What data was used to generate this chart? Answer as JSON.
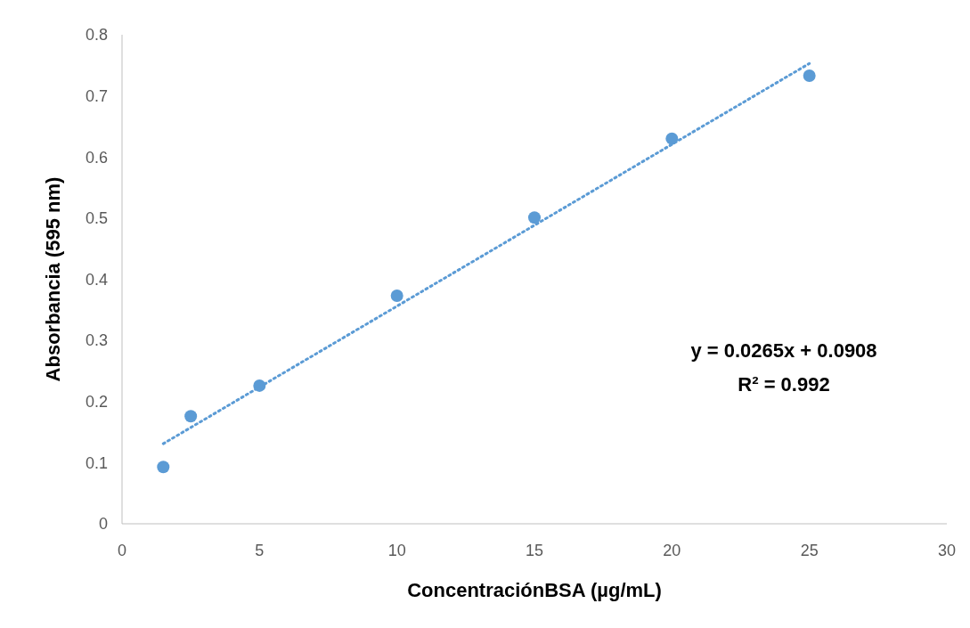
{
  "chart_data": {
    "type": "scatter",
    "xlabel": "ConcentraciónBSA (µg/mL)",
    "ylabel": "Absorbancia (595 nm)",
    "xlim": [
      0,
      30
    ],
    "xticks": [
      0,
      5,
      10,
      15,
      20,
      25,
      30
    ],
    "ylim": [
      0,
      0.8
    ],
    "yticks": [
      0,
      0.1,
      0.2,
      0.3,
      0.4,
      0.5,
      0.6,
      0.7,
      0.8
    ],
    "grid": false,
    "series": [
      {
        "color": "#5b9bd5",
        "marker": "circle",
        "x": [
          1.5,
          2.5,
          5,
          10,
          15,
          20,
          25
        ],
        "values": [
          0.093,
          0.176,
          0.226,
          0.373,
          0.501,
          0.63,
          0.733
        ]
      },
      {
        "type": "line",
        "color": "#5b9bd5",
        "marker": "none",
        "line_style": "dotted",
        "x": [
          1.5,
          25
        ],
        "values": [
          0.131,
          0.753
        ]
      }
    ],
    "annotations": [
      "y = 0.0265x + 0.0908",
      "R² = 0.992"
    ]
  }
}
